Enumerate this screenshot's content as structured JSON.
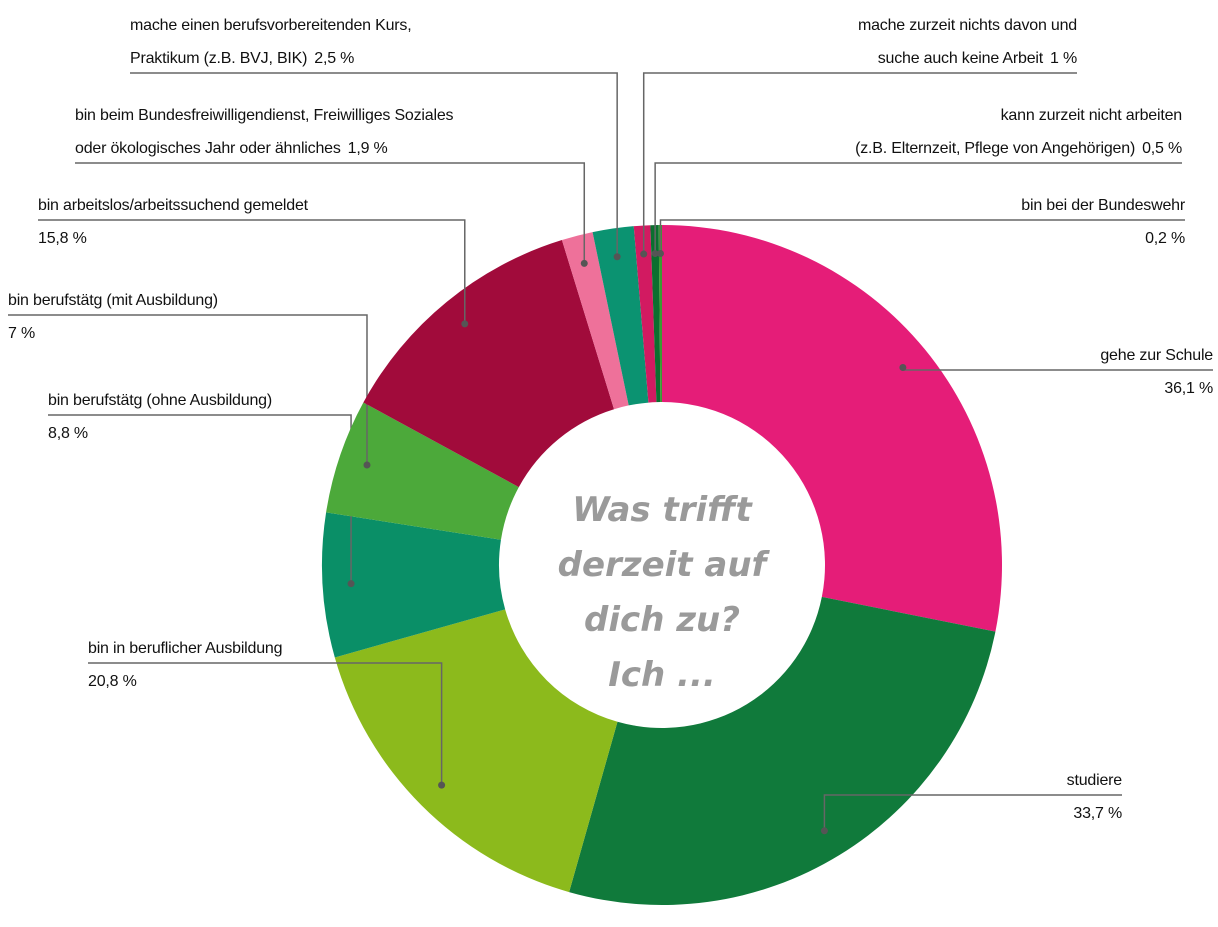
{
  "chart_data": {
    "type": "donut",
    "center_text": "Was trifft\nderzeit auf\ndich zu?\nIch ...",
    "categories": [
      "gehe zur Schule",
      "studiere",
      "bin in beruflicher Ausbildung",
      "bin berufstätg (ohne Ausbildung)",
      "bin berufstätg (mit Ausbildung)",
      "bin arbeitslos/arbeitssuchend gemeldet",
      "bin beim Bundesfreiwilligendienst, Freiwilliges Soziales\noder ökologisches Jahr oder ähnliches",
      "mache einen berufsvorbereitenden Kurs,\nPraktikum (z.B. BVJ, BIK)",
      "mache zurzeit nichts davon und\nsuche auch keine Arbeit",
      "kann zurzeit nicht arbeiten\n(z.B. Elternzeit, Pflege von Angehörigen)",
      "bin bei der Bundeswehr"
    ],
    "values": [
      36.1,
      33.7,
      20.8,
      8.8,
      7,
      15.8,
      1.9,
      2.5,
      1,
      0.5,
      0.2
    ],
    "value_labels": [
      "36,1 %",
      "33,7 %",
      "20,8 %",
      "8,8 %",
      "7 %",
      "15,8 %",
      "1,9 %",
      "2,5 %",
      "1 %",
      "0,5 %",
      "0,2 %"
    ],
    "colors": [
      "#e51d78",
      "#107a3b",
      "#8cba1c",
      "#0a8f67",
      "#4ca93a",
      "#a10b3b",
      "#ee719a",
      "#0b9371",
      "#d21a61",
      "#0b6f2f",
      "#3a9b31"
    ]
  }
}
